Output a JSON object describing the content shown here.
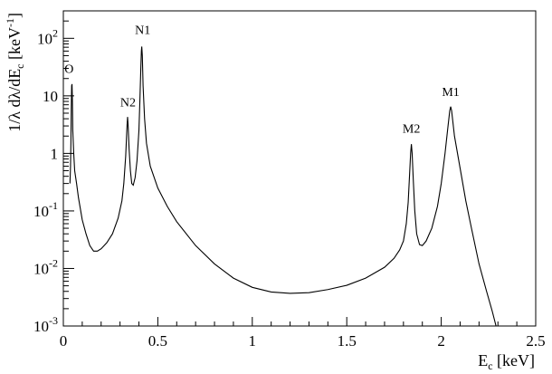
{
  "chart_data": {
    "type": "line",
    "title": "",
    "xlabel": "E",
    "xlabel_sub": "c",
    "xlabel_unit": " [keV]",
    "ylabel": "1/λ dλ/dE",
    "ylabel_sub": "c",
    "ylabel_unit": "  [keV",
    "ylabel_unit_sup": "-1",
    "ylabel_unit_close": "]",
    "xlim": [
      0,
      2.5
    ],
    "ylim": [
      0.001,
      300
    ],
    "yscale": "log",
    "grid": false,
    "x_ticks": [
      {
        "value": 0,
        "label": "0"
      },
      {
        "value": 0.5,
        "label": "0.5"
      },
      {
        "value": 1.0,
        "label": "1"
      },
      {
        "value": 1.5,
        "label": "1.5"
      },
      {
        "value": 2.0,
        "label": "2"
      },
      {
        "value": 2.5,
        "label": "2.5"
      }
    ],
    "y_ticks": [
      {
        "value": 0.001,
        "base": "10",
        "exp": "-3"
      },
      {
        "value": 0.01,
        "base": "10",
        "exp": "-2"
      },
      {
        "value": 0.1,
        "base": "10",
        "exp": "-1"
      },
      {
        "value": 1,
        "base": "1",
        "exp": ""
      },
      {
        "value": 10,
        "base": "10",
        "exp": ""
      },
      {
        "value": 100,
        "base": "10",
        "exp": "2"
      }
    ],
    "series": [
      {
        "points": [
          [
            0.035,
            0.3
          ],
          [
            0.038,
            0.6
          ],
          [
            0.04,
            1.5
          ],
          [
            0.042,
            6
          ],
          [
            0.044,
            15
          ],
          [
            0.046,
            16
          ],
          [
            0.048,
            8
          ],
          [
            0.05,
            2.5
          ],
          [
            0.055,
            1.0
          ],
          [
            0.06,
            0.5
          ],
          [
            0.07,
            0.3
          ],
          [
            0.08,
            0.17
          ],
          [
            0.1,
            0.07
          ],
          [
            0.12,
            0.04
          ],
          [
            0.14,
            0.025
          ],
          [
            0.16,
            0.02
          ],
          [
            0.18,
            0.02
          ],
          [
            0.2,
            0.022
          ],
          [
            0.23,
            0.028
          ],
          [
            0.26,
            0.04
          ],
          [
            0.29,
            0.075
          ],
          [
            0.31,
            0.15
          ],
          [
            0.32,
            0.3
          ],
          [
            0.33,
            0.9
          ],
          [
            0.337,
            3.0
          ],
          [
            0.34,
            4.3
          ],
          [
            0.343,
            3.0
          ],
          [
            0.348,
            1.2
          ],
          [
            0.355,
            0.5
          ],
          [
            0.362,
            0.3
          ],
          [
            0.37,
            0.28
          ],
          [
            0.38,
            0.38
          ],
          [
            0.39,
            0.75
          ],
          [
            0.4,
            2.5
          ],
          [
            0.405,
            8
          ],
          [
            0.41,
            30
          ],
          [
            0.413,
            60
          ],
          [
            0.415,
            72
          ],
          [
            0.418,
            50
          ],
          [
            0.422,
            15
          ],
          [
            0.43,
            4
          ],
          [
            0.44,
            1.5
          ],
          [
            0.46,
            0.6
          ],
          [
            0.5,
            0.25
          ],
          [
            0.55,
            0.12
          ],
          [
            0.6,
            0.065
          ],
          [
            0.7,
            0.025
          ],
          [
            0.8,
            0.012
          ],
          [
            0.9,
            0.0068
          ],
          [
            1.0,
            0.0047
          ],
          [
            1.1,
            0.0039
          ],
          [
            1.2,
            0.0037
          ],
          [
            1.3,
            0.0038
          ],
          [
            1.4,
            0.0043
          ],
          [
            1.5,
            0.0051
          ],
          [
            1.6,
            0.0068
          ],
          [
            1.7,
            0.0105
          ],
          [
            1.75,
            0.015
          ],
          [
            1.78,
            0.021
          ],
          [
            1.8,
            0.03
          ],
          [
            1.815,
            0.06
          ],
          [
            1.825,
            0.14
          ],
          [
            1.832,
            0.4
          ],
          [
            1.838,
            1.0
          ],
          [
            1.842,
            1.45
          ],
          [
            1.846,
            1.0
          ],
          [
            1.852,
            0.35
          ],
          [
            1.86,
            0.1
          ],
          [
            1.87,
            0.04
          ],
          [
            1.885,
            0.026
          ],
          [
            1.9,
            0.025
          ],
          [
            1.92,
            0.03
          ],
          [
            1.95,
            0.05
          ],
          [
            1.98,
            0.12
          ],
          [
            2.0,
            0.3
          ],
          [
            2.02,
            1.0
          ],
          [
            2.035,
            2.8
          ],
          [
            2.045,
            5.5
          ],
          [
            2.05,
            6.5
          ],
          [
            2.055,
            5.5
          ],
          [
            2.07,
            2.0
          ],
          [
            2.1,
            0.55
          ],
          [
            2.13,
            0.15
          ],
          [
            2.16,
            0.05
          ],
          [
            2.2,
            0.012
          ],
          [
            2.24,
            0.004
          ],
          [
            2.27,
            0.0018
          ],
          [
            2.29,
            0.001
          ]
        ]
      }
    ],
    "annotations": [
      {
        "text": "O",
        "x": 0.03,
        "y": 25
      },
      {
        "text": "N2",
        "x": 0.342,
        "y": 6.5
      },
      {
        "text": "N1",
        "x": 0.42,
        "y": 120
      },
      {
        "text": "M2",
        "x": 1.842,
        "y": 2.3
      },
      {
        "text": "M1",
        "x": 2.05,
        "y": 10
      }
    ]
  }
}
